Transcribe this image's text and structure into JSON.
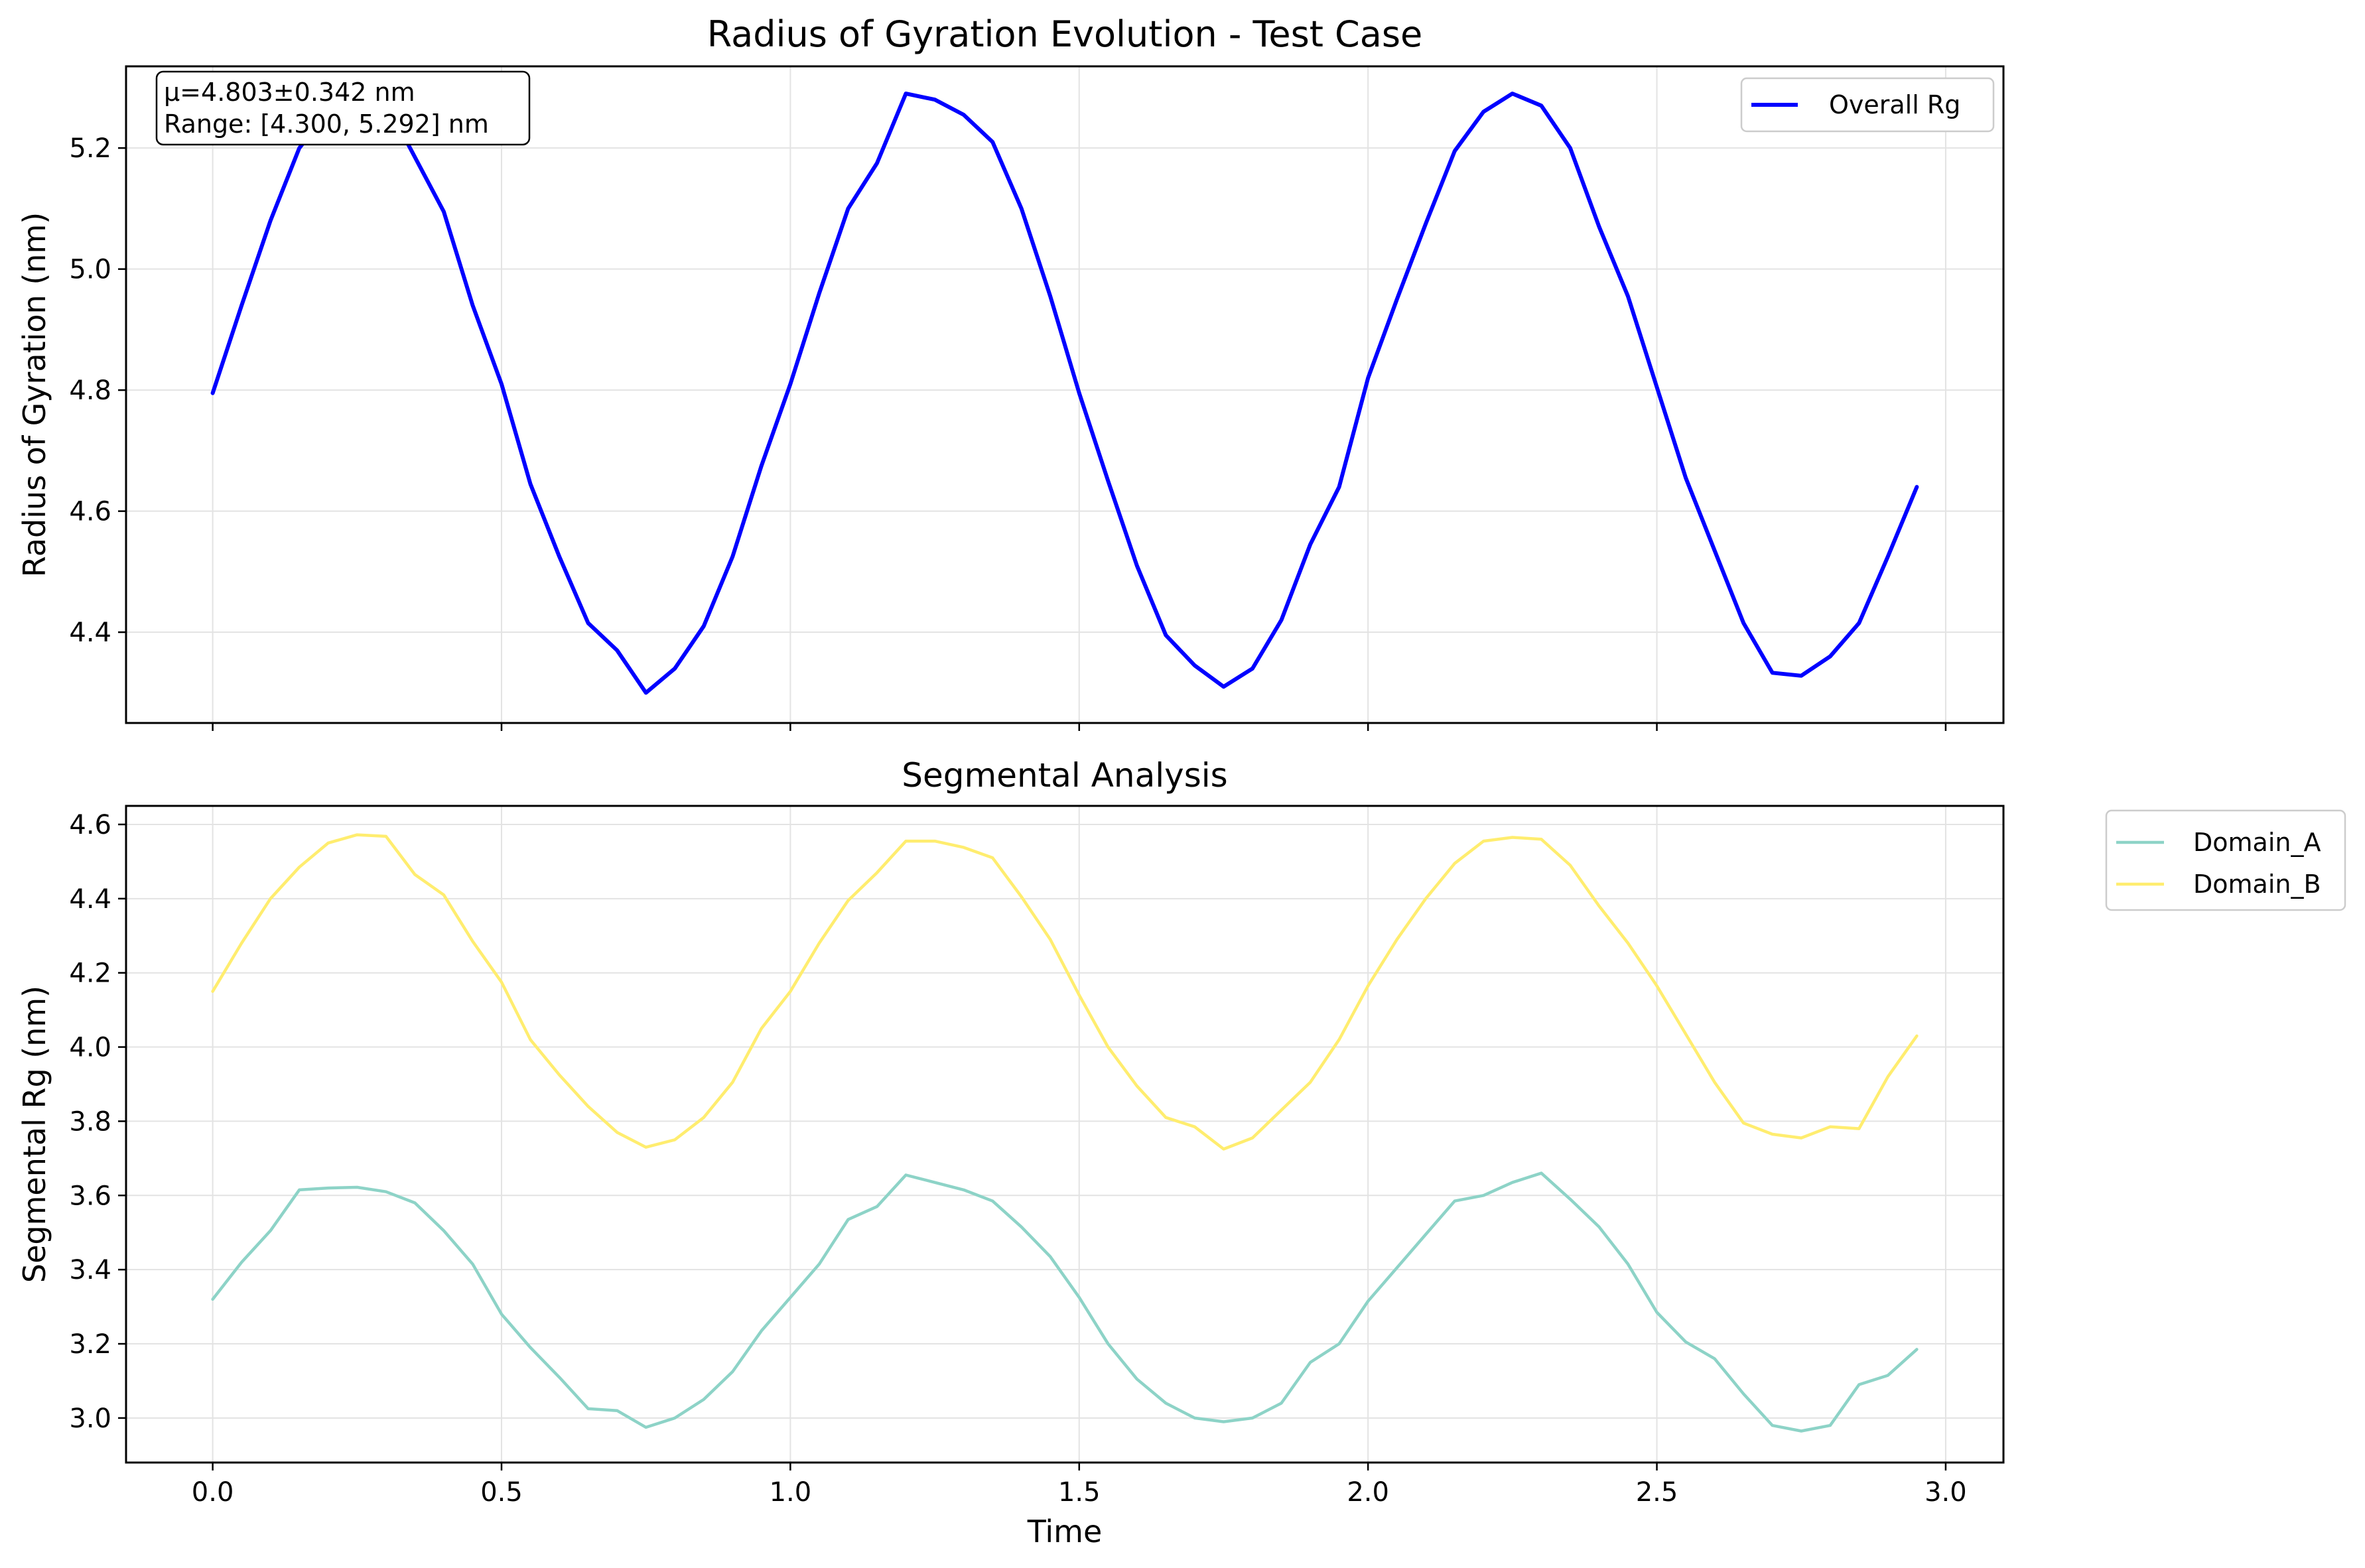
{
  "chart_data": [
    {
      "type": "line",
      "title": "Radius of Gyration Evolution - Test Case",
      "xlabel": "",
      "ylabel": "Radius of Gyration (nm)",
      "xlim": [
        -0.15,
        3.1
      ],
      "ylim": [
        4.25,
        5.335
      ],
      "xticks": [
        0.0,
        0.5,
        1.0,
        1.5,
        2.0,
        2.5,
        3.0
      ],
      "xtick_labels_visible": false,
      "yticks": [
        4.4,
        4.6,
        4.8,
        5.0,
        5.2
      ],
      "ytick_labels": [
        "4.4",
        "4.6",
        "4.8",
        "5.0",
        "5.2"
      ],
      "grid": true,
      "legend_position": "top-right",
      "stats_box": {
        "line1": "μ=4.803±0.342 nm",
        "line2": "Range: [4.300, 5.292] nm"
      },
      "series": [
        {
          "name": "Overall Rg",
          "color": "#0000ff",
          "x": [
            0.0,
            0.05,
            0.1,
            0.15,
            0.2,
            0.25,
            0.3,
            0.35,
            0.4,
            0.45,
            0.5,
            0.55,
            0.6,
            0.65,
            0.7,
            0.75,
            0.8,
            0.85,
            0.9,
            0.95,
            1.0,
            1.05,
            1.1,
            1.15,
            1.2,
            1.25,
            1.3,
            1.35,
            1.4,
            1.45,
            1.5,
            1.55,
            1.6,
            1.65,
            1.7,
            1.75,
            1.8,
            1.85,
            1.9,
            1.95,
            2.0,
            2.05,
            2.1,
            2.15,
            2.2,
            2.25,
            2.3,
            2.35,
            2.4,
            2.45,
            2.5,
            2.55,
            2.6,
            2.65,
            2.7,
            2.75,
            2.8,
            2.85,
            2.9,
            2.95
          ],
          "y": [
            4.795,
            4.94,
            5.08,
            5.2,
            5.26,
            5.292,
            5.275,
            5.185,
            5.095,
            4.94,
            4.81,
            4.645,
            4.525,
            4.415,
            4.37,
            4.3,
            4.34,
            4.41,
            4.525,
            4.675,
            4.81,
            4.96,
            5.1,
            5.175,
            5.29,
            5.28,
            5.255,
            5.21,
            5.1,
            4.955,
            4.795,
            4.65,
            4.51,
            4.395,
            4.345,
            4.31,
            4.34,
            4.42,
            4.545,
            4.64,
            4.82,
            4.95,
            5.075,
            5.195,
            5.26,
            5.29,
            5.27,
            5.2,
            5.07,
            4.955,
            4.805,
            4.655,
            4.535,
            4.415,
            4.333,
            4.328,
            4.36,
            4.415,
            4.525,
            4.64
          ]
        }
      ]
    },
    {
      "type": "line",
      "title": "Segmental Analysis",
      "xlabel": "Time",
      "ylabel": "Segmental Rg (nm)",
      "xlim": [
        -0.15,
        3.1
      ],
      "ylim": [
        2.88,
        4.65
      ],
      "xticks": [
        0.0,
        0.5,
        1.0,
        1.5,
        2.0,
        2.5,
        3.0
      ],
      "xtick_labels": [
        "0.0",
        "0.5",
        "1.0",
        "1.5",
        "2.0",
        "2.5",
        "3.0"
      ],
      "yticks": [
        3.0,
        3.2,
        3.4,
        3.6,
        3.8,
        4.0,
        4.2,
        4.4,
        4.6
      ],
      "ytick_labels": [
        "3.0",
        "3.2",
        "3.4",
        "3.6",
        "3.8",
        "4.0",
        "4.2",
        "4.4",
        "4.6"
      ],
      "grid": true,
      "legend_position": "outside-top-right",
      "series": [
        {
          "name": "Domain_A",
          "color": "#8dd3c7",
          "x": [
            0.0,
            0.05,
            0.1,
            0.15,
            0.2,
            0.25,
            0.3,
            0.35,
            0.4,
            0.45,
            0.5,
            0.55,
            0.6,
            0.65,
            0.7,
            0.75,
            0.8,
            0.85,
            0.9,
            0.95,
            1.0,
            1.05,
            1.1,
            1.15,
            1.2,
            1.25,
            1.3,
            1.35,
            1.4,
            1.45,
            1.5,
            1.55,
            1.6,
            1.65,
            1.7,
            1.75,
            1.8,
            1.85,
            1.9,
            1.95,
            2.0,
            2.05,
            2.1,
            2.15,
            2.2,
            2.25,
            2.3,
            2.35,
            2.4,
            2.45,
            2.5,
            2.55,
            2.6,
            2.65,
            2.7,
            2.75,
            2.8,
            2.85,
            2.9,
            2.95
          ],
          "y": [
            3.32,
            3.42,
            3.505,
            3.615,
            3.62,
            3.622,
            3.61,
            3.58,
            3.505,
            3.415,
            3.28,
            3.19,
            3.11,
            3.025,
            3.02,
            2.975,
            3.0,
            3.05,
            3.125,
            3.235,
            3.325,
            3.415,
            3.535,
            3.57,
            3.655,
            3.635,
            3.615,
            3.585,
            3.515,
            3.435,
            3.325,
            3.2,
            3.105,
            3.04,
            3.0,
            2.99,
            3.0,
            3.04,
            3.15,
            3.2,
            3.315,
            3.405,
            3.495,
            3.585,
            3.6,
            3.635,
            3.66,
            3.59,
            3.515,
            3.415,
            3.285,
            3.205,
            3.16,
            3.065,
            2.98,
            2.965,
            2.98,
            3.09,
            3.115,
            3.185
          ]
        },
        {
          "name": "Domain_B",
          "color": "#ffed6f",
          "x": [
            0.0,
            0.05,
            0.1,
            0.15,
            0.2,
            0.25,
            0.3,
            0.35,
            0.4,
            0.45,
            0.5,
            0.55,
            0.6,
            0.65,
            0.7,
            0.75,
            0.8,
            0.85,
            0.9,
            0.95,
            1.0,
            1.05,
            1.1,
            1.15,
            1.2,
            1.25,
            1.3,
            1.35,
            1.4,
            1.45,
            1.5,
            1.55,
            1.6,
            1.65,
            1.7,
            1.75,
            1.8,
            1.85,
            1.9,
            1.95,
            2.0,
            2.05,
            2.1,
            2.15,
            2.2,
            2.25,
            2.3,
            2.35,
            2.4,
            2.45,
            2.5,
            2.55,
            2.6,
            2.65,
            2.7,
            2.75,
            2.8,
            2.85,
            2.9,
            2.95
          ],
          "y": [
            4.15,
            4.28,
            4.4,
            4.485,
            4.55,
            4.572,
            4.568,
            4.465,
            4.41,
            4.285,
            4.175,
            4.02,
            3.925,
            3.84,
            3.77,
            3.73,
            3.75,
            3.81,
            3.905,
            4.05,
            4.15,
            4.28,
            4.395,
            4.47,
            4.555,
            4.555,
            4.538,
            4.51,
            4.405,
            4.29,
            4.14,
            4.0,
            3.895,
            3.81,
            3.785,
            3.725,
            3.755,
            3.83,
            3.905,
            4.02,
            4.165,
            4.29,
            4.4,
            4.495,
            4.555,
            4.565,
            4.56,
            4.49,
            4.38,
            4.28,
            4.165,
            4.035,
            3.905,
            3.795,
            3.765,
            3.755,
            3.785,
            3.78,
            3.92,
            4.03
          ]
        }
      ]
    }
  ]
}
